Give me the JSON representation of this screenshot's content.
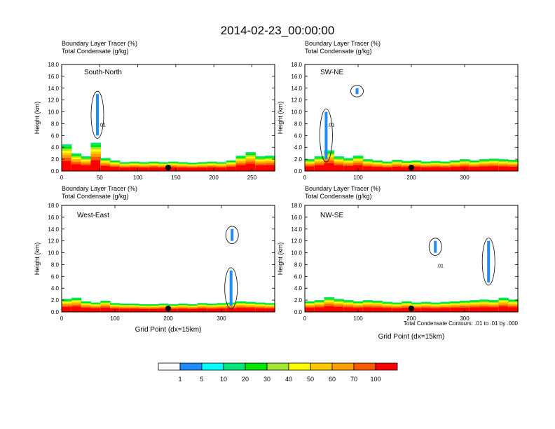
{
  "figure": {
    "title": "2014-02-23_00:00:00",
    "footnote": "Total Condensate Contours: .01 to .01 by .000"
  },
  "colorbar": {
    "labels": [
      "1",
      "5",
      "10",
      "20",
      "30",
      "40",
      "50",
      "60",
      "70",
      "100"
    ],
    "colors": [
      "#ffffff",
      "#1e8cff",
      "#00ffff",
      "#00e878",
      "#00e600",
      "#a0e632",
      "#ffff00",
      "#ffc800",
      "#ffa000",
      "#ff5a00",
      "#ff0000"
    ]
  },
  "chart_data": [
    {
      "type": "heatmap",
      "panel": "South-North",
      "title_line1": "Boundary Layer Tracer   (%)",
      "title_line2": "Total Condensate   (g/kg)",
      "ylabel": "Height (km)",
      "xlabel": "",
      "ylim": [
        0,
        18
      ],
      "xlim": [
        0,
        280
      ],
      "yticks": [
        "0.0",
        "2.0",
        "4.0",
        "6.0",
        "8.0",
        "10.0",
        "12.0",
        "14.0",
        "16.0",
        "18.0"
      ],
      "xticks": [
        "0",
        "50",
        "100",
        "150",
        "200",
        "250"
      ],
      "xtick_values": [
        0,
        50,
        100,
        150,
        200,
        250
      ],
      "marker_x": 140,
      "contour_label": ".01",
      "pbl_top_km": [
        4.5,
        3.0,
        2.5,
        4.8,
        2.2,
        1.8,
        1.5,
        1.6,
        1.5,
        1.6,
        1.5,
        1.6,
        1.5,
        1.4,
        1.5,
        1.6,
        1.5,
        1.8,
        2.6,
        3.2,
        2.5,
        2.6
      ],
      "cloud_x": [
        47
      ],
      "cloud_km": [
        [
          6,
          13
        ]
      ]
    },
    {
      "type": "heatmap",
      "panel": "SW-NE",
      "title_line1": "Boundary Layer Tracer   (%)",
      "title_line2": "Total Condensate   (g/kg)",
      "ylabel": "Height (km)",
      "xlabel": "",
      "ylim": [
        0,
        18
      ],
      "xlim": [
        0,
        400
      ],
      "yticks": [
        "0.0",
        "2.0",
        "4.0",
        "6.0",
        "8.0",
        "10.0",
        "12.0",
        "14.0",
        "16.0",
        "18.0"
      ],
      "xticks": [
        "0",
        "100",
        "200",
        "300"
      ],
      "xtick_values": [
        0,
        100,
        200,
        300
      ],
      "marker_x": 200,
      "contour_label": ".01",
      "pbl_top_km": [
        2.0,
        2.5,
        3.5,
        2.5,
        2.2,
        2.6,
        2.0,
        1.8,
        1.6,
        1.9,
        1.7,
        1.8,
        1.6,
        1.7,
        1.6,
        1.8,
        2.0,
        1.8,
        2.0,
        2.1,
        2.0,
        1.9
      ],
      "cloud_x": [
        40,
        98
      ],
      "cloud_km": [
        [
          2,
          10
        ],
        [
          13,
          14
        ]
      ]
    },
    {
      "type": "heatmap",
      "panel": "West-East",
      "title_line1": "Boundary Layer Tracer   (%)",
      "title_line2": "Total Condensate   (g/kg)",
      "ylabel": "Height (km)",
      "xlabel": "Grid Point (dx=15km)",
      "ylim": [
        0,
        18
      ],
      "xlim": [
        0,
        400
      ],
      "yticks": [
        "0.0",
        "2.0",
        "4.0",
        "6.0",
        "8.0",
        "10.0",
        "12.0",
        "14.0",
        "16.0",
        "18.0"
      ],
      "xticks": [
        "0",
        "100",
        "200",
        "300"
      ],
      "xtick_values": [
        0,
        100,
        200,
        300
      ],
      "marker_x": 200,
      "contour_label": "",
      "pbl_top_km": [
        2.2,
        2.4,
        1.8,
        1.6,
        1.9,
        1.5,
        1.4,
        1.4,
        1.3,
        1.3,
        1.4,
        1.3,
        1.4,
        1.3,
        1.5,
        1.4,
        1.5,
        1.6,
        1.8,
        1.7,
        1.6,
        1.5
      ],
      "cloud_x": [
        318,
        320
      ],
      "cloud_km": [
        [
          1,
          7
        ],
        [
          12,
          14
        ]
      ]
    },
    {
      "type": "heatmap",
      "panel": "NW-SE",
      "title_line1": "Boundary Layer Tracer   (%)",
      "title_line2": "Total Condensate   (g/kg)",
      "ylabel": "Height (km)",
      "xlabel": "Grid Point (dx=15km)",
      "ylim": [
        0,
        18
      ],
      "xlim": [
        0,
        400
      ],
      "yticks": [
        "0.0",
        "2.0",
        "4.0",
        "6.0",
        "8.0",
        "10.0",
        "12.0",
        "14.0",
        "16.0",
        "18.0"
      ],
      "xticks": [
        "0",
        "100",
        "200",
        "300"
      ],
      "xtick_values": [
        0,
        100,
        200,
        300
      ],
      "marker_x": 200,
      "contour_label": ".01",
      "pbl_top_km": [
        1.8,
        2.0,
        2.5,
        2.2,
        2.0,
        1.8,
        2.0,
        1.9,
        1.7,
        1.6,
        1.8,
        1.6,
        1.7,
        1.6,
        1.7,
        1.8,
        1.9,
        2.0,
        2.1,
        2.0,
        2.4,
        2.1
      ],
      "cloud_x": [
        245,
        345
      ],
      "cloud_km": [
        [
          10,
          12
        ],
        [
          5,
          12
        ]
      ]
    }
  ]
}
